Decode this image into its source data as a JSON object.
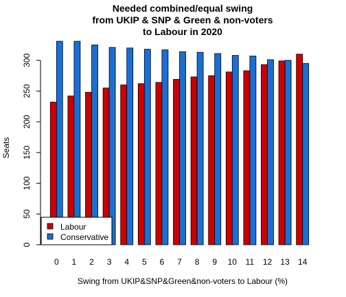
{
  "chart_data": {
    "type": "bar",
    "title": [
      "Needed combined/equal swing",
      "from UKIP & SNP & Green & non-voters",
      "to Labour in 2020"
    ],
    "xlabel": "Swing from UKIP&SNP&Green&non-voters to Labour (%)",
    "ylabel": "Seats",
    "categories": [
      "0",
      "1",
      "2",
      "3",
      "4",
      "5",
      "6",
      "7",
      "8",
      "9",
      "10",
      "11",
      "12",
      "13",
      "14"
    ],
    "ylim": [
      0,
      330
    ],
    "yticks": [
      0,
      50,
      100,
      150,
      200,
      250,
      300
    ],
    "series": [
      {
        "name": "Labour",
        "color": "#cc0000",
        "values": [
          232,
          242,
          248,
          255,
          260,
          262,
          264,
          269,
          273,
          275,
          281,
          283,
          293,
          299,
          310
        ]
      },
      {
        "name": "Conservative",
        "color": "#1a6fd4",
        "values": [
          331,
          331,
          325,
          321,
          320,
          318,
          317,
          314,
          313,
          311,
          308,
          307,
          301,
          300,
          295
        ]
      }
    ],
    "legend_position": "bottom-left",
    "grid": false
  }
}
